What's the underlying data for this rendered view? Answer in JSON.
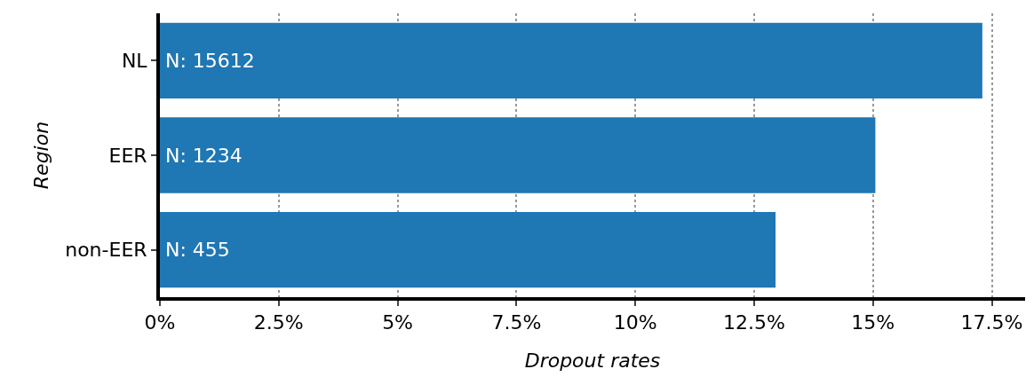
{
  "chart_data": {
    "type": "bar",
    "orientation": "horizontal",
    "xlabel": "Dropout rates",
    "ylabel": "Region",
    "categories": [
      "NL",
      "EER",
      "non-EER"
    ],
    "values": [
      17.3,
      15.05,
      12.95
    ],
    "annotations": [
      {
        "text": "N: 15612",
        "y": "NL"
      },
      {
        "text": "N: 1234",
        "y": "EER"
      },
      {
        "text": "N: 455",
        "y": "non-EER"
      }
    ],
    "color": "#1f77b4",
    "xlim": [
      0,
      18.2
    ],
    "xticks": [
      {
        "value": 0,
        "label": "0%"
      },
      {
        "value": 2.5,
        "label": "2.5%"
      },
      {
        "value": 5,
        "label": "5%"
      },
      {
        "value": 7.5,
        "label": "7.5%"
      },
      {
        "value": 10,
        "label": "10%"
      },
      {
        "value": 12.5,
        "label": "12.5%"
      },
      {
        "value": 15,
        "label": "15%"
      },
      {
        "value": 17.5,
        "label": "17.5%"
      }
    ],
    "grid": "x",
    "legend": false
  }
}
